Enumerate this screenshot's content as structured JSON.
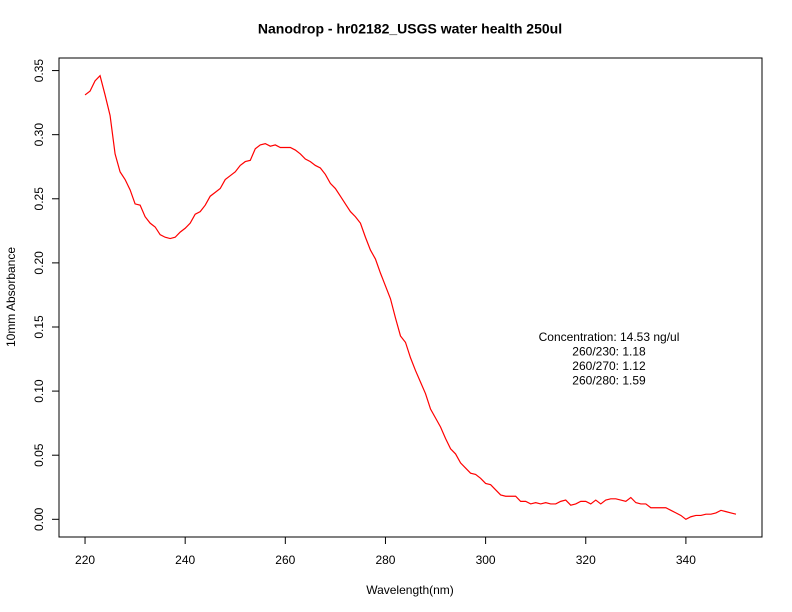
{
  "chart_data": {
    "type": "line",
    "title": "Nanodrop - hr02182_USGS water health 250ul",
    "xlabel": "Wavelength(nm)",
    "ylabel": "10mm Absorbance",
    "annotations": [
      "Concentration: 14.53 ng/ul",
      "260/230: 1.18",
      "260/270: 1.12",
      "260/280: 1.59"
    ],
    "xlim": [
      214.8,
      355.2
    ],
    "ylim": [
      -0.0138,
      0.3598
    ],
    "xticks": [
      220,
      240,
      260,
      280,
      300,
      320,
      340
    ],
    "yticks": [
      {
        "value": 0,
        "label": "0.00"
      },
      0.05,
      {
        "value": 0.1,
        "label": "0.10"
      },
      0.15,
      {
        "value": 0.2,
        "label": "0.20"
      },
      0.25,
      {
        "value": 0.3,
        "label": "0.30"
      },
      0.35
    ],
    "series": [
      {
        "color": "#ff0000",
        "x": [
          220,
          221,
          222,
          223,
          224,
          225,
          226,
          227,
          228,
          229,
          230,
          231,
          232,
          233,
          234,
          235,
          236,
          237,
          238,
          239,
          240,
          241,
          242,
          243,
          244,
          245,
          246,
          247,
          248,
          249,
          250,
          251,
          252,
          253,
          254,
          255,
          256,
          257,
          258,
          259,
          260,
          261,
          262,
          263,
          264,
          265,
          266,
          267,
          268,
          269,
          270,
          271,
          272,
          273,
          274,
          275,
          276,
          277,
          278,
          279,
          280,
          281,
          282,
          283,
          284,
          285,
          286,
          287,
          288,
          289,
          290,
          291,
          292,
          293,
          294,
          295,
          296,
          297,
          298,
          299,
          300,
          301,
          302,
          303,
          304,
          305,
          306,
          307,
          308,
          309,
          310,
          311,
          312,
          313,
          314,
          315,
          316,
          317,
          318,
          319,
          320,
          321,
          322,
          323,
          324,
          325,
          326,
          327,
          328,
          329,
          330,
          331,
          332,
          333,
          334,
          335,
          336,
          337,
          338,
          339,
          340,
          341,
          342,
          343,
          344,
          345,
          346,
          347,
          348,
          349,
          350
        ],
        "values": [
          0.331,
          0.334,
          0.342,
          0.346,
          0.331,
          0.315,
          0.285,
          0.271,
          0.265,
          0.257,
          0.246,
          0.245,
          0.236,
          0.231,
          0.228,
          0.222,
          0.22,
          0.219,
          0.22,
          0.224,
          0.227,
          0.231,
          0.238,
          0.24,
          0.245,
          0.252,
          0.255,
          0.258,
          0.265,
          0.268,
          0.271,
          0.276,
          0.279,
          0.28,
          0.289,
          0.292,
          0.293,
          0.291,
          0.292,
          0.29,
          0.29,
          0.29,
          0.288,
          0.285,
          0.281,
          0.279,
          0.276,
          0.274,
          0.269,
          0.262,
          0.258,
          0.252,
          0.246,
          0.24,
          0.236,
          0.231,
          0.22,
          0.21,
          0.203,
          0.192,
          0.182,
          0.172,
          0.157,
          0.143,
          0.138,
          0.126,
          0.116,
          0.107,
          0.098,
          0.086,
          0.079,
          0.072,
          0.063,
          0.055,
          0.051,
          0.044,
          0.04,
          0.036,
          0.035,
          0.032,
          0.028,
          0.027,
          0.023,
          0.019,
          0.018,
          0.018,
          0.018,
          0.014,
          0.014,
          0.012,
          0.013,
          0.012,
          0.013,
          0.012,
          0.012,
          0.014,
          0.015,
          0.011,
          0.012,
          0.014,
          0.014,
          0.012,
          0.015,
          0.012,
          0.015,
          0.016,
          0.016,
          0.015,
          0.014,
          0.017,
          0.013,
          0.012,
          0.012,
          0.009,
          0.009,
          0.009,
          0.009,
          0.007,
          0.005,
          0.003,
          0.0,
          0.002,
          0.003,
          0.003,
          0.004,
          0.004,
          0.005,
          0.007,
          0.006,
          0.005,
          0.004
        ]
      }
    ]
  }
}
